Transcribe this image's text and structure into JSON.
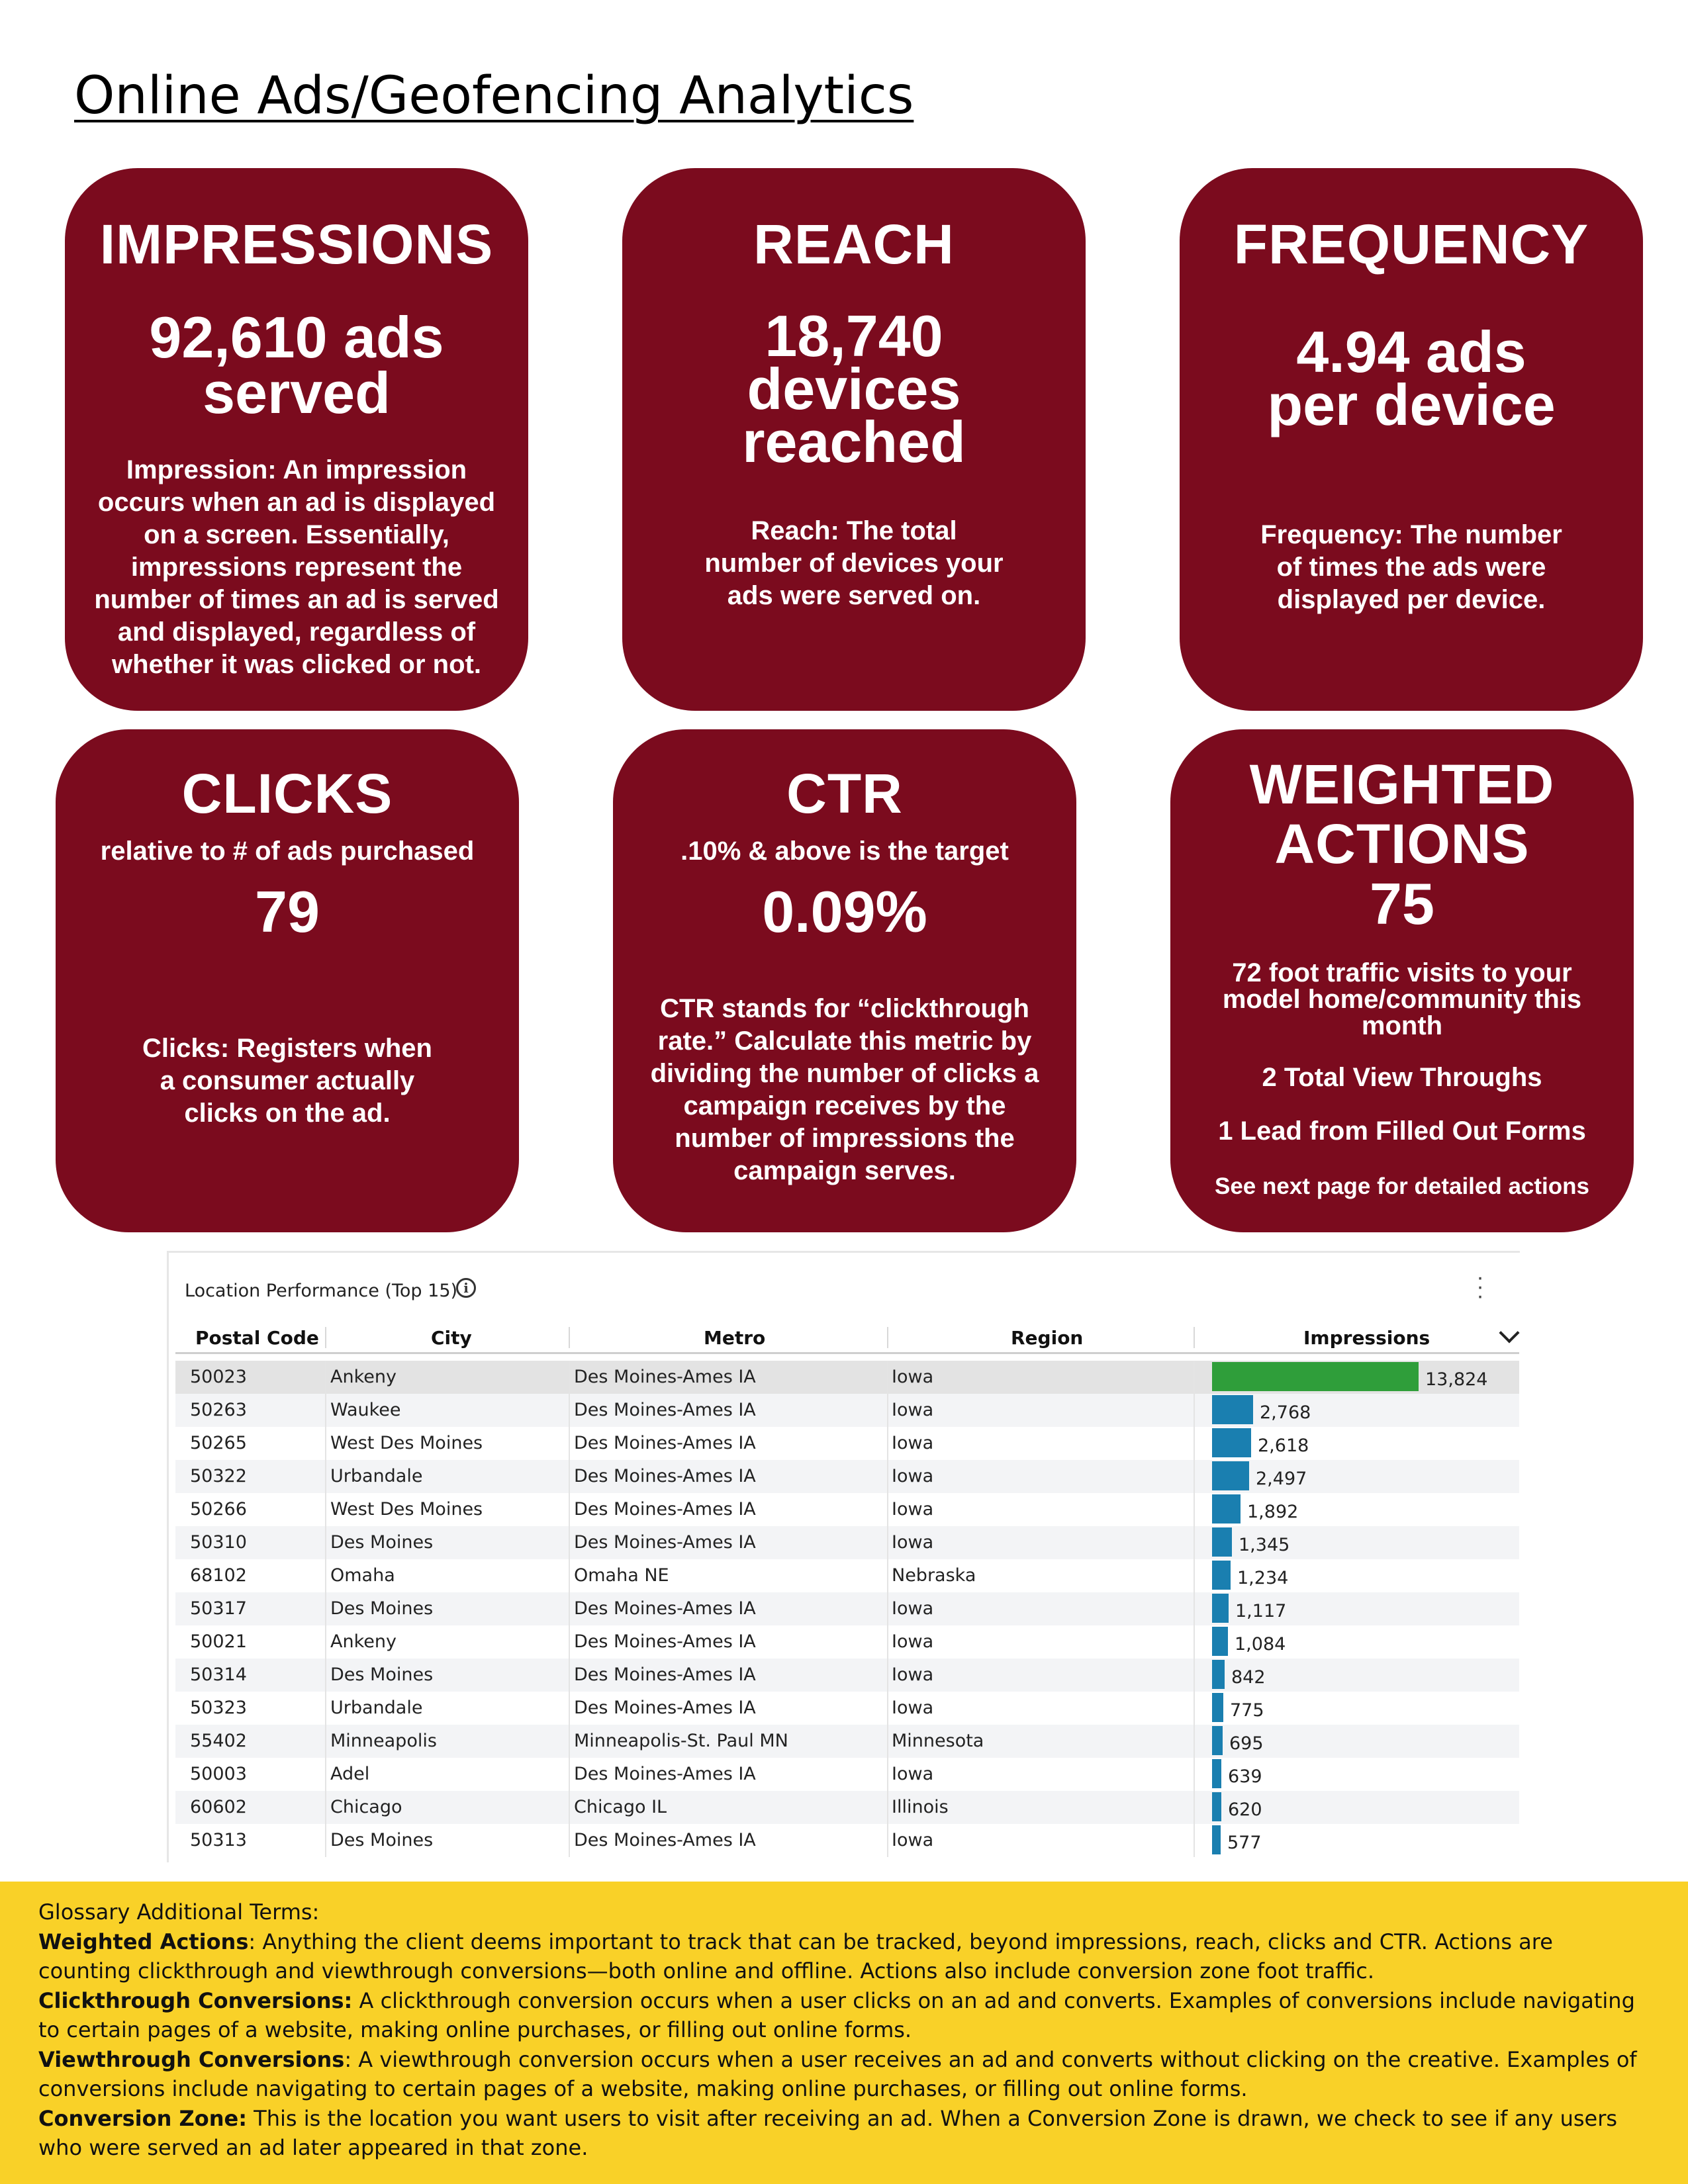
{
  "page": {
    "title": "Online Ads/Geofencing Analytics"
  },
  "cards": {
    "impressions": {
      "title": "IMPRESSIONS",
      "value_line1": "92,610 ads",
      "value_line2": "served",
      "desc_lines": [
        "Impression: An impression",
        "occurs when an ad is displayed",
        "on a screen. Essentially,",
        "impressions represent the",
        "number of times an ad is served",
        "and displayed, regardless of",
        "whether it was clicked or not."
      ]
    },
    "reach": {
      "title": "REACH",
      "value_line1": "18,740",
      "value_line2": "devices",
      "value_line3": "reached",
      "desc_lines": [
        "Reach: The total",
        "number of devices your",
        "ads were served on."
      ]
    },
    "frequency": {
      "title": "FREQUENCY",
      "value_line1": "4.94 ads",
      "value_line2": "per device",
      "desc_lines": [
        "Frequency: The number",
        "of times the ads were",
        "displayed per device."
      ]
    },
    "clicks": {
      "title": "CLICKS",
      "subtitle": "relative to # of ads purchased",
      "value": "79",
      "desc_lines": [
        "Clicks: Registers when",
        "a consumer actually",
        "clicks on the ad."
      ]
    },
    "ctr": {
      "title": "CTR",
      "subtitle": ".10% & above is the target",
      "value": "0.09%",
      "desc_lines": [
        "CTR stands for “clickthrough",
        "rate.” Calculate this metric by",
        "dividing the number of clicks a",
        "campaign receives by the",
        "number of impressions the",
        "campaign serves."
      ]
    },
    "weighted": {
      "title_line1": "WEIGHTED",
      "title_line2": "ACTIONS",
      "value": "75",
      "foot_lines": [
        "72 foot traffic visits to your",
        "model home/community this",
        "month"
      ],
      "view_throughs": "2 Total View Throughs",
      "leads": "1 Lead from Filled Out Forms",
      "note": "See next page for detailed actions"
    }
  },
  "table": {
    "title": "Location Performance (Top 15)",
    "info_icon": "info-icon",
    "menu_icon": "kebab-icon",
    "bar_colors": {
      "top": "#2f9e3a",
      "rest": "#1a7fb0"
    },
    "columns": [
      "Postal Code",
      "City",
      "Metro",
      "Region",
      "Impressions"
    ],
    "max_impressions": 13824,
    "rows": [
      {
        "postal": "50023",
        "city": "Ankeny",
        "metro": "Des Moines-Ames IA",
        "region": "Iowa",
        "impressions": 13824,
        "impressions_label": "13,824"
      },
      {
        "postal": "50263",
        "city": "Waukee",
        "metro": "Des Moines-Ames IA",
        "region": "Iowa",
        "impressions": 2768,
        "impressions_label": "2,768"
      },
      {
        "postal": "50265",
        "city": "West Des Moines",
        "metro": "Des Moines-Ames IA",
        "region": "Iowa",
        "impressions": 2618,
        "impressions_label": "2,618"
      },
      {
        "postal": "50322",
        "city": "Urbandale",
        "metro": "Des Moines-Ames IA",
        "region": "Iowa",
        "impressions": 2497,
        "impressions_label": "2,497"
      },
      {
        "postal": "50266",
        "city": "West Des Moines",
        "metro": "Des Moines-Ames IA",
        "region": "Iowa",
        "impressions": 1892,
        "impressions_label": "1,892"
      },
      {
        "postal": "50310",
        "city": "Des Moines",
        "metro": "Des Moines-Ames IA",
        "region": "Iowa",
        "impressions": 1345,
        "impressions_label": "1,345"
      },
      {
        "postal": "68102",
        "city": "Omaha",
        "metro": "Omaha NE",
        "region": "Nebraska",
        "impressions": 1234,
        "impressions_label": "1,234"
      },
      {
        "postal": "50317",
        "city": "Des Moines",
        "metro": "Des Moines-Ames IA",
        "region": "Iowa",
        "impressions": 1117,
        "impressions_label": "1,117"
      },
      {
        "postal": "50021",
        "city": "Ankeny",
        "metro": "Des Moines-Ames IA",
        "region": "Iowa",
        "impressions": 1084,
        "impressions_label": "1,084"
      },
      {
        "postal": "50314",
        "city": "Des Moines",
        "metro": "Des Moines-Ames IA",
        "region": "Iowa",
        "impressions": 842,
        "impressions_label": "842"
      },
      {
        "postal": "50323",
        "city": "Urbandale",
        "metro": "Des Moines-Ames IA",
        "region": "Iowa",
        "impressions": 775,
        "impressions_label": "775"
      },
      {
        "postal": "55402",
        "city": "Minneapolis",
        "metro": "Minneapolis-St. Paul MN",
        "region": "Minnesota",
        "impressions": 695,
        "impressions_label": "695"
      },
      {
        "postal": "50003",
        "city": "Adel",
        "metro": "Des Moines-Ames IA",
        "region": "Iowa",
        "impressions": 639,
        "impressions_label": "639"
      },
      {
        "postal": "60602",
        "city": "Chicago",
        "metro": "Chicago IL",
        "region": "Illinois",
        "impressions": 620,
        "impressions_label": "620"
      },
      {
        "postal": "50313",
        "city": "Des Moines",
        "metro": "Des Moines-Ames IA",
        "region": "Iowa",
        "impressions": 577,
        "impressions_label": "577"
      }
    ]
  },
  "glossary": {
    "heading": "Glossary Additional Terms:",
    "terms": [
      {
        "term": "Weighted Actions",
        "sep": ": ",
        "text": "Anything the client deems important to track that can be tracked, beyond impressions, reach, clicks and CTR. Actions are counting clickthrough and viewthrough conversions—both online and offline. Actions also include conversion zone foot traffic."
      },
      {
        "term": "Clickthrough Conversions:",
        "sep": " ",
        "text": "A clickthrough conversion occurs when a user clicks on an ad and converts. Examples of conversions include navigating to certain pages of a website, making online purchases, or filling out online forms."
      },
      {
        "term": "Viewthrough Conversions",
        "sep": ": ",
        "text": "A viewthrough conversion occurs when a user receives an ad and converts without clicking on the creative. Examples of conversions include navigating to certain pages of a website, making online purchases, or filling out online forms."
      },
      {
        "term": "Conversion Zone:",
        "sep": " ",
        "text": "This is the location you want users to visit after receiving an ad. When a Conversion Zone is drawn, we check to see if any users who were served an ad later appeared in that zone."
      }
    ]
  }
}
